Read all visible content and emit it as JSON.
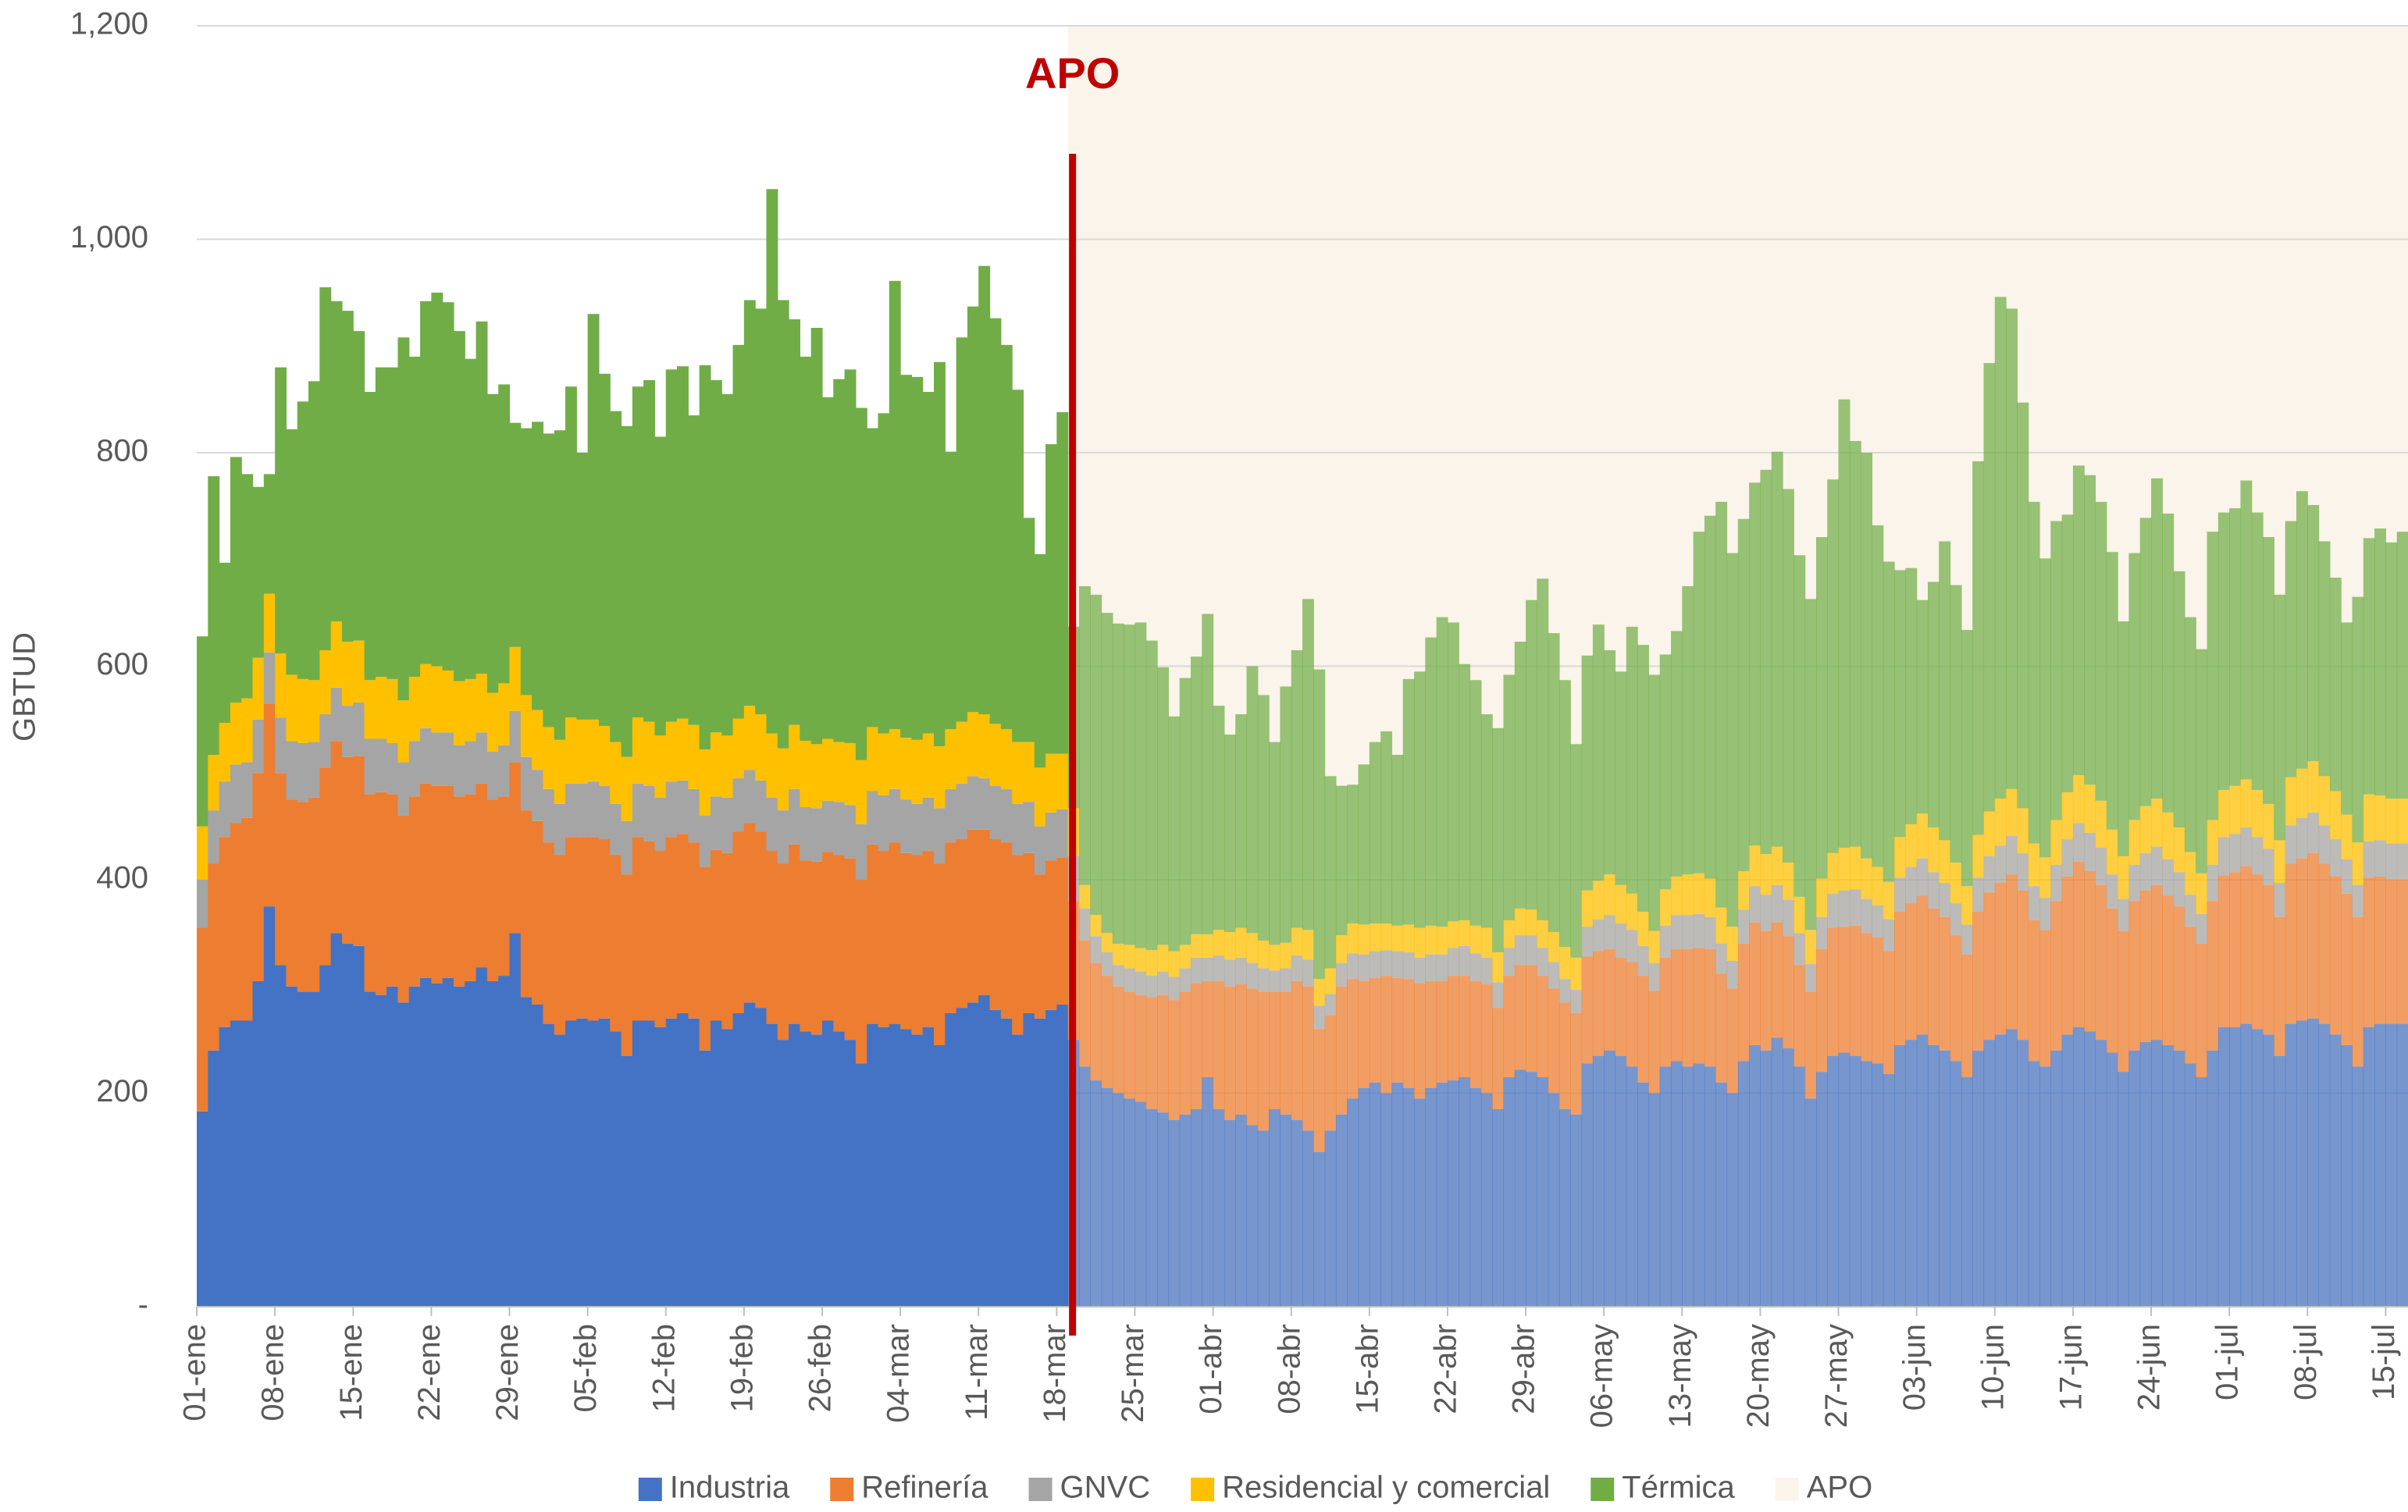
{
  "chart_data": {
    "type": "stacked_bar",
    "y_label": "GBTUD",
    "ylim": [
      0,
      1200
    ],
    "yticks": [
      {
        "value": 0,
        "label": "-"
      },
      200,
      400,
      600,
      800,
      {
        "value": 1000,
        "label": "1,000"
      },
      {
        "value": 1200,
        "label": "1,200"
      }
    ],
    "grid": true,
    "legend": "bottom",
    "apo": {
      "label": "APO",
      "color": "#fbf4ea",
      "line_color": "#c00000",
      "start_index": 78
    },
    "categories": [
      "01-ene",
      null,
      null,
      null,
      null,
      null,
      null,
      "08-ene",
      null,
      null,
      null,
      null,
      null,
      null,
      "15-ene",
      null,
      null,
      null,
      null,
      null,
      null,
      "22-ene",
      null,
      null,
      null,
      null,
      null,
      null,
      "29-ene",
      null,
      null,
      null,
      null,
      null,
      null,
      "05-feb",
      null,
      null,
      null,
      null,
      null,
      null,
      "12-feb",
      null,
      null,
      null,
      null,
      null,
      null,
      "19-feb",
      null,
      null,
      null,
      null,
      null,
      null,
      "26-feb",
      null,
      null,
      null,
      null,
      null,
      null,
      "04-mar",
      null,
      null,
      null,
      null,
      null,
      null,
      "11-mar",
      null,
      null,
      null,
      null,
      null,
      null,
      "18-mar",
      null,
      null,
      null,
      null,
      null,
      null,
      "25-mar",
      null,
      null,
      null,
      null,
      null,
      null,
      "01-abr",
      null,
      null,
      null,
      null,
      null,
      null,
      "08-abr",
      null,
      null,
      null,
      null,
      null,
      null,
      "15-abr",
      null,
      null,
      null,
      null,
      null,
      null,
      "22-abr",
      null,
      null,
      null,
      null,
      null,
      null,
      "29-abr",
      null,
      null,
      null,
      null,
      null,
      null,
      "06-may",
      null,
      null,
      null,
      null,
      null,
      null,
      "13-may",
      null,
      null,
      null,
      null,
      null,
      null,
      "20-may",
      null,
      null,
      null,
      null,
      null,
      null,
      "27-may",
      null,
      null,
      null,
      null,
      null,
      null,
      "03-jun",
      null,
      null,
      null,
      null,
      null,
      null,
      "10-jun",
      null,
      null,
      null,
      null,
      null,
      null,
      "17-jun",
      null,
      null,
      null,
      null,
      null,
      null,
      "24-jun",
      null,
      null,
      null,
      null,
      null,
      null,
      "01-jul",
      null,
      null,
      null,
      null,
      null,
      null,
      "08-jul",
      null,
      null,
      null,
      null,
      null,
      null,
      "15-jul",
      null
    ],
    "series": [
      {
        "name": "Industria",
        "color": "#4472c4",
        "values": [
          183,
          240,
          262,
          268,
          268,
          305,
          375,
          320,
          300,
          295,
          295,
          320,
          350,
          340,
          338,
          295,
          292,
          300,
          285,
          300,
          308,
          303,
          308,
          300,
          305,
          318,
          305,
          310,
          350,
          290,
          283,
          265,
          255,
          268,
          270,
          268,
          270,
          258,
          235,
          268,
          268,
          262,
          270,
          275,
          270,
          240,
          268,
          260,
          275,
          285,
          280,
          265,
          250,
          265,
          258,
          255,
          268,
          258,
          250,
          228,
          265,
          262,
          265,
          260,
          255,
          262,
          245,
          275,
          280,
          285,
          292,
          278,
          270,
          255,
          275,
          270,
          278,
          283,
          250,
          225,
          212,
          205,
          200,
          195,
          192,
          185,
          182,
          175,
          180,
          185,
          215,
          185,
          175,
          180,
          170,
          165,
          185,
          180,
          175,
          165,
          145,
          165,
          180,
          195,
          205,
          210,
          200,
          210,
          205,
          195,
          205,
          210,
          212,
          215,
          205,
          200,
          185,
          215,
          222,
          220,
          215,
          200,
          185,
          180,
          228,
          235,
          240,
          235,
          225,
          210,
          200,
          225,
          230,
          225,
          228,
          225,
          210,
          200,
          230,
          245,
          240,
          252,
          242,
          225,
          195,
          220,
          235,
          238,
          235,
          230,
          228,
          218,
          245,
          250,
          255,
          245,
          240,
          230,
          215,
          240,
          250,
          255,
          260,
          250,
          230,
          225,
          240,
          255,
          262,
          258,
          250,
          238,
          220,
          240,
          248,
          250,
          245,
          240,
          228,
          215,
          240,
          262,
          262,
          265,
          260,
          255,
          235,
          265,
          268,
          270,
          265,
          255,
          245,
          225,
          262,
          265,
          265,
          265
        ]
      },
      {
        "name": "Refinería",
        "color": "#ed7d31",
        "values": [
          172,
          175,
          178,
          185,
          190,
          195,
          190,
          180,
          175,
          178,
          182,
          185,
          180,
          175,
          178,
          185,
          190,
          180,
          175,
          178,
          182,
          185,
          180,
          178,
          175,
          172,
          170,
          168,
          160,
          175,
          172,
          170,
          168,
          172,
          170,
          172,
          168,
          165,
          170,
          172,
          168,
          165,
          170,
          168,
          165,
          172,
          160,
          165,
          170,
          168,
          165,
          162,
          165,
          168,
          160,
          162,
          158,
          165,
          170,
          172,
          168,
          165,
          170,
          165,
          168,
          165,
          170,
          160,
          158,
          162,
          155,
          160,
          165,
          168,
          150,
          135,
          140,
          138,
          130,
          118,
          110,
          105,
          100,
          100,
          100,
          105,
          110,
          112,
          115,
          118,
          90,
          120,
          125,
          122,
          128,
          130,
          110,
          115,
          130,
          135,
          115,
          108,
          120,
          112,
          100,
          98,
          110,
          98,
          102,
          108,
          100,
          95,
          98,
          95,
          100,
          102,
          95,
          95,
          98,
          100,
          95,
          98,
          100,
          95,
          100,
          98,
          95,
          92,
          98,
          100,
          96,
          102,
          105,
          110,
          108,
          110,
          102,
          98,
          110,
          115,
          112,
          108,
          105,
          95,
          100,
          115,
          120,
          118,
          122,
          120,
          118,
          115,
          125,
          128,
          130,
          128,
          125,
          118,
          115,
          130,
          138,
          142,
          145,
          140,
          132,
          128,
          140,
          148,
          155,
          150,
          145,
          135,
          132,
          140,
          142,
          145,
          140,
          135,
          128,
          125,
          140,
          142,
          145,
          148,
          145,
          140,
          130,
          150,
          152,
          155,
          150,
          148,
          142,
          140,
          140,
          138,
          135,
          135
        ]
      },
      {
        "name": "GNVC",
        "color": "#a5a5a5",
        "values": [
          45,
          50,
          52,
          55,
          52,
          50,
          48,
          52,
          55,
          55,
          52,
          50,
          50,
          48,
          50,
          52,
          50,
          48,
          50,
          52,
          52,
          50,
          50,
          48,
          50,
          48,
          45,
          48,
          48,
          50,
          48,
          50,
          48,
          50,
          50,
          52,
          50,
          48,
          50,
          50,
          52,
          50,
          52,
          50,
          50,
          48,
          50,
          52,
          50,
          50,
          48,
          50,
          50,
          52,
          50,
          50,
          48,
          50,
          50,
          52,
          50,
          52,
          50,
          50,
          48,
          50,
          52,
          50,
          52,
          50,
          48,
          50,
          50,
          48,
          48,
          45,
          45,
          45,
          42,
          30,
          25,
          22,
          20,
          22,
          22,
          20,
          22,
          22,
          22,
          24,
          22,
          24,
          25,
          25,
          24,
          22,
          20,
          22,
          24,
          25,
          22,
          20,
          22,
          24,
          25,
          25,
          24,
          25,
          25,
          24,
          25,
          25,
          26,
          28,
          26,
          25,
          24,
          26,
          28,
          28,
          26,
          25,
          22,
          22,
          28,
          30,
          32,
          32,
          30,
          28,
          26,
          30,
          32,
          32,
          32,
          30,
          28,
          26,
          32,
          34,
          34,
          35,
          34,
          30,
          26,
          30,
          32,
          34,
          34,
          32,
          30,
          30,
          32,
          34,
          35,
          34,
          32,
          30,
          28,
          32,
          34,
          35,
          36,
          35,
          32,
          30,
          34,
          35,
          36,
          36,
          35,
          32,
          30,
          34,
          35,
          36,
          34,
          32,
          30,
          28,
          34,
          36,
          36,
          36,
          35,
          34,
          32,
          36,
          38,
          38,
          36,
          35,
          32,
          30,
          34,
          34,
          34,
          34
        ]
      },
      {
        "name": "Residencial y comercial",
        "color": "#ffc000",
        "values": [
          50,
          52,
          55,
          58,
          60,
          58,
          55,
          60,
          62,
          60,
          58,
          60,
          62,
          60,
          58,
          55,
          58,
          60,
          58,
          60,
          60,
          62,
          58,
          60,
          58,
          55,
          55,
          58,
          60,
          58,
          56,
          58,
          60,
          62,
          60,
          58,
          56,
          58,
          60,
          62,
          60,
          58,
          56,
          58,
          60,
          62,
          60,
          58,
          56,
          60,
          62,
          60,
          58,
          60,
          62,
          60,
          58,
          56,
          58,
          60,
          60,
          58,
          56,
          58,
          60,
          60,
          58,
          56,
          58,
          60,
          60,
          58,
          56,
          58,
          56,
          55,
          55,
          52,
          45,
          22,
          20,
          18,
          20,
          22,
          22,
          24,
          25,
          24,
          22,
          22,
          22,
          24,
          26,
          28,
          28,
          26,
          24,
          24,
          26,
          28,
          25,
          24,
          26,
          28,
          28,
          26,
          25,
          24,
          26,
          28,
          27,
          26,
          25,
          24,
          26,
          28,
          28,
          26,
          25,
          24,
          26,
          28,
          30,
          30,
          34,
          36,
          38,
          36,
          34,
          32,
          30,
          34,
          36,
          38,
          38,
          36,
          34,
          32,
          36,
          38,
          38,
          36,
          35,
          34,
          32,
          36,
          38,
          40,
          40,
          38,
          36,
          35,
          38,
          40,
          42,
          42,
          40,
          38,
          36,
          40,
          42,
          44,
          44,
          42,
          40,
          38,
          42,
          44,
          45,
          45,
          44,
          42,
          40,
          42,
          44,
          45,
          44,
          42,
          40,
          38,
          42,
          44,
          45,
          45,
          44,
          42,
          40,
          45,
          46,
          48,
          46,
          45,
          42,
          40,
          44,
          42,
          42,
          42
        ]
      },
      {
        "name": "Térmica",
        "color": "#70ad47",
        "values": [
          178,
          261,
          150,
          230,
          210,
          160,
          112,
          268,
          230,
          260,
          280,
          340,
          300,
          310,
          290,
          270,
          290,
          292,
          340,
          300,
          340,
          350,
          345,
          328,
          300,
          330,
          280,
          280,
          210,
          250,
          270,
          275,
          290,
          310,
          250,
          380,
          330,
          310,
          310,
          310,
          320,
          280,
          330,
          330,
          290,
          360,
          330,
          320,
          350,
          380,
          380,
          510,
          420,
          380,
          360,
          390,
          320,
          340,
          350,
          330,
          280,
          300,
          420,
          340,
          340,
          320,
          360,
          260,
          360,
          380,
          420,
          380,
          360,
          330,
          210,
          200,
          290,
          320,
          170,
          280,
          300,
          300,
          300,
          300,
          305,
          290,
          260,
          220,
          250,
          260,
          300,
          210,
          185,
          200,
          250,
          230,
          190,
          240,
          260,
          310,
          290,
          180,
          140,
          130,
          150,
          170,
          180,
          160,
          230,
          240,
          270,
          290,
          280,
          240,
          230,
          200,
          210,
          230,
          250,
          290,
          320,
          280,
          250,
          200,
          220,
          240,
          210,
          200,
          250,
          250,
          240,
          220,
          230,
          270,
          320,
          340,
          380,
          350,
          330,
          340,
          360,
          370,
          350,
          320,
          310,
          320,
          350,
          420,
          380,
          380,
          320,
          300,
          250,
          240,
          200,
          230,
          280,
          260,
          240,
          350,
          420,
          470,
          450,
          380,
          320,
          280,
          280,
          260,
          290,
          290,
          280,
          260,
          220,
          250,
          270,
          300,
          280,
          240,
          220,
          210,
          270,
          260,
          260,
          280,
          260,
          250,
          230,
          240,
          260,
          240,
          220,
          200,
          180,
          230,
          240,
          250,
          240,
          250
        ]
      }
    ]
  }
}
